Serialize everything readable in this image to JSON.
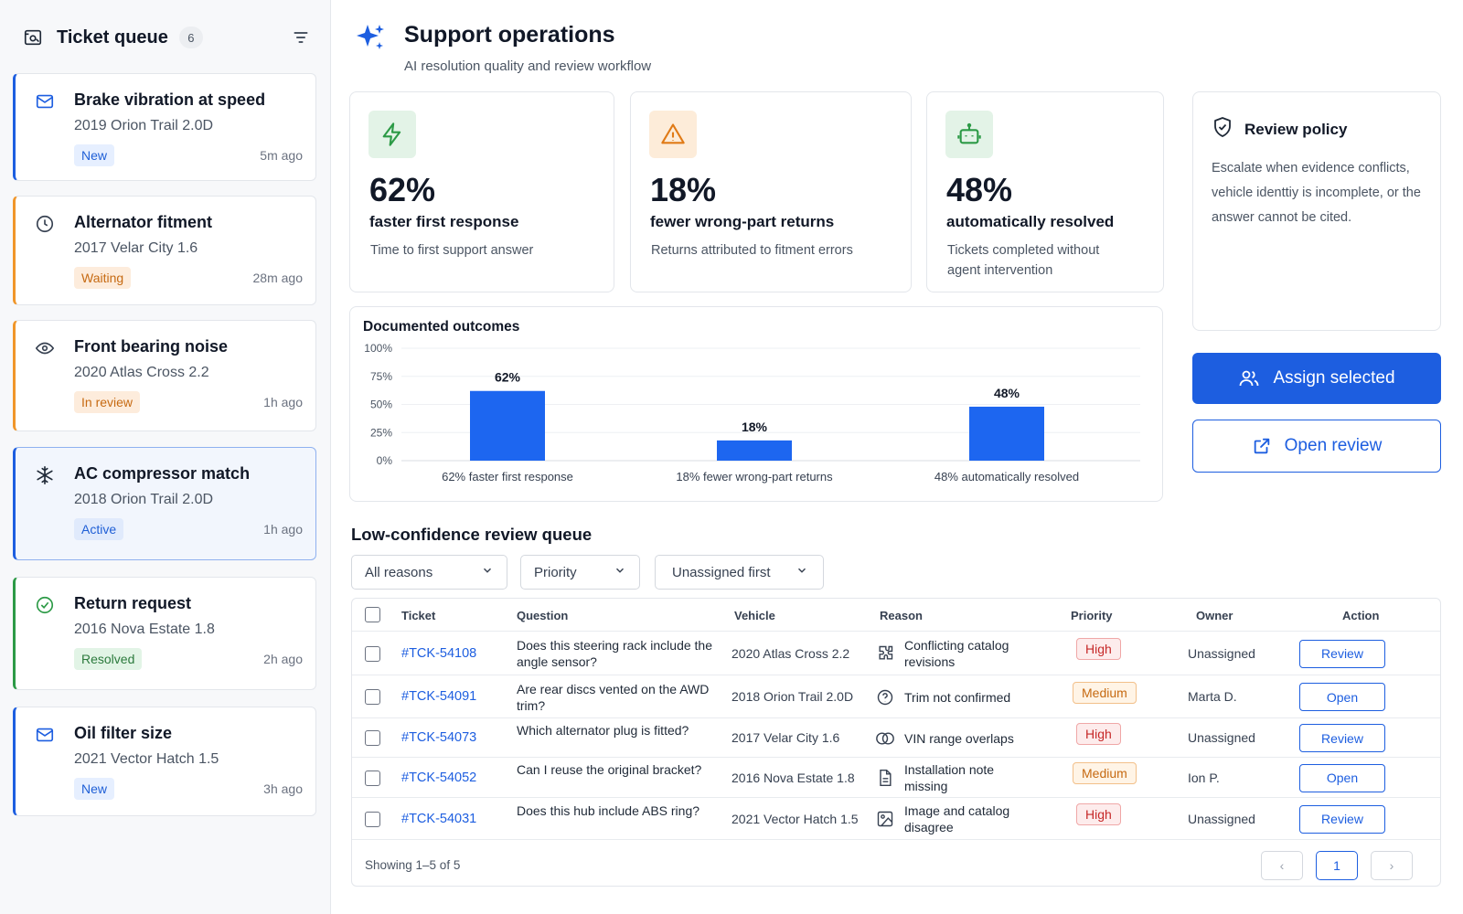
{
  "sidebar": {
    "title": "Ticket queue",
    "count": "6",
    "tickets": [
      {
        "title": "Brake vibration at speed",
        "vehicle": "2019 Orion Trail 2.0D",
        "status": "New",
        "time": "5m ago"
      },
      {
        "title": "Alternator fitment",
        "vehicle": "2017 Velar City 1.6",
        "status": "Waiting",
        "time": "28m ago"
      },
      {
        "title": "Front bearing noise",
        "vehicle": "2020 Atlas Cross 2.2",
        "status": "In review",
        "time": "1h ago"
      },
      {
        "title": "AC compressor match",
        "vehicle": "2018 Orion Trail 2.0D",
        "status": "Active",
        "time": "1h ago"
      },
      {
        "title": "Return request",
        "vehicle": "2016 Nova Estate 1.8",
        "status": "Resolved",
        "time": "2h ago"
      },
      {
        "title": "Oil filter size",
        "vehicle": "2021 Vector Hatch 1.5",
        "status": "New",
        "time": "3h ago"
      }
    ]
  },
  "header": {
    "title": "Support operations",
    "subtitle": "AI resolution quality and review workflow"
  },
  "kpis": [
    {
      "value": "62%",
      "label": "faster first response",
      "desc": "Time to first support answer"
    },
    {
      "value": "18%",
      "label": "fewer wrong-part returns",
      "desc": "Returns attributed to fitment errors"
    },
    {
      "value": "48%",
      "label": "automatically resolved",
      "desc": "Tickets completed without agent intervention"
    }
  ],
  "policy": {
    "title": "Review policy",
    "text": "Escalate when evidence conflicts, vehicle identtiy is incomplete, or the answer cannot be cited."
  },
  "actions": {
    "assign": "Assign selected",
    "open_review": "Open review"
  },
  "chart_data": {
    "type": "bar",
    "title": "Documented outcomes",
    "categories": [
      "62% faster first response",
      "18% fewer wrong-part returns",
      "48% automatically resolved"
    ],
    "values": [
      62,
      18,
      48
    ],
    "data_labels": [
      "62%",
      "18%",
      "48%"
    ],
    "yticks": [
      "100%",
      "75%",
      "50%",
      "25%",
      "0%"
    ],
    "ylim": [
      0,
      100
    ],
    "grid": true,
    "color": "#1d66f0"
  },
  "queue": {
    "title": "Low-confidence review queue",
    "filters": [
      "All reasons",
      "Priority",
      "Unassigned first"
    ],
    "columns": [
      "Ticket",
      "Question",
      "Vehicle",
      "Reason",
      "Priority",
      "Owner",
      "Action"
    ],
    "rows": [
      {
        "id": "#TCK-54108",
        "question": "Does this steering rack include the angle sensor?",
        "vehicle": "2020 Atlas Cross 2.2",
        "reason_icon": "puzzle-icon",
        "reason": "Conflicting catalog revisions",
        "priority": "High",
        "owner": "Unassigned",
        "action": "Review"
      },
      {
        "id": "#TCK-54091",
        "question": "Are rear discs vented on the AWD trim?",
        "vehicle": "2018 Orion Trail 2.0D",
        "reason_icon": "question-circle-icon",
        "reason": "Trim not confirmed",
        "priority": "Medium",
        "owner": "Marta D.",
        "action": "Open"
      },
      {
        "id": "#TCK-54073",
        "question": "Which alternator plug is fitted?",
        "vehicle": "2017 Velar City 1.6",
        "reason_icon": "overlap-icon",
        "reason": "VIN range overlaps",
        "priority": "High",
        "owner": "Unassigned",
        "action": "Review"
      },
      {
        "id": "#TCK-54052",
        "question": "Can I reuse the original bracket?",
        "vehicle": "2016 Nova Estate 1.8",
        "reason_icon": "document-icon",
        "reason": "Installation note missing",
        "priority": "Medium",
        "owner": "Ion P.",
        "action": "Open"
      },
      {
        "id": "#TCK-54031",
        "question": "Does this hub include ABS ring?",
        "vehicle": "2021 Vector Hatch 1.5",
        "reason_icon": "image-icon",
        "reason": "Image and catalog disagree",
        "priority": "High",
        "owner": "Unassigned",
        "action": "Review"
      }
    ],
    "showing": "Showing 1–5 of 5",
    "page": "1"
  },
  "colors": {
    "accent": "#1d5ee0",
    "new": "#1f5fd6",
    "waiting": "#c66a12",
    "resolved": "#2c7a3d",
    "high": "#c62828"
  }
}
